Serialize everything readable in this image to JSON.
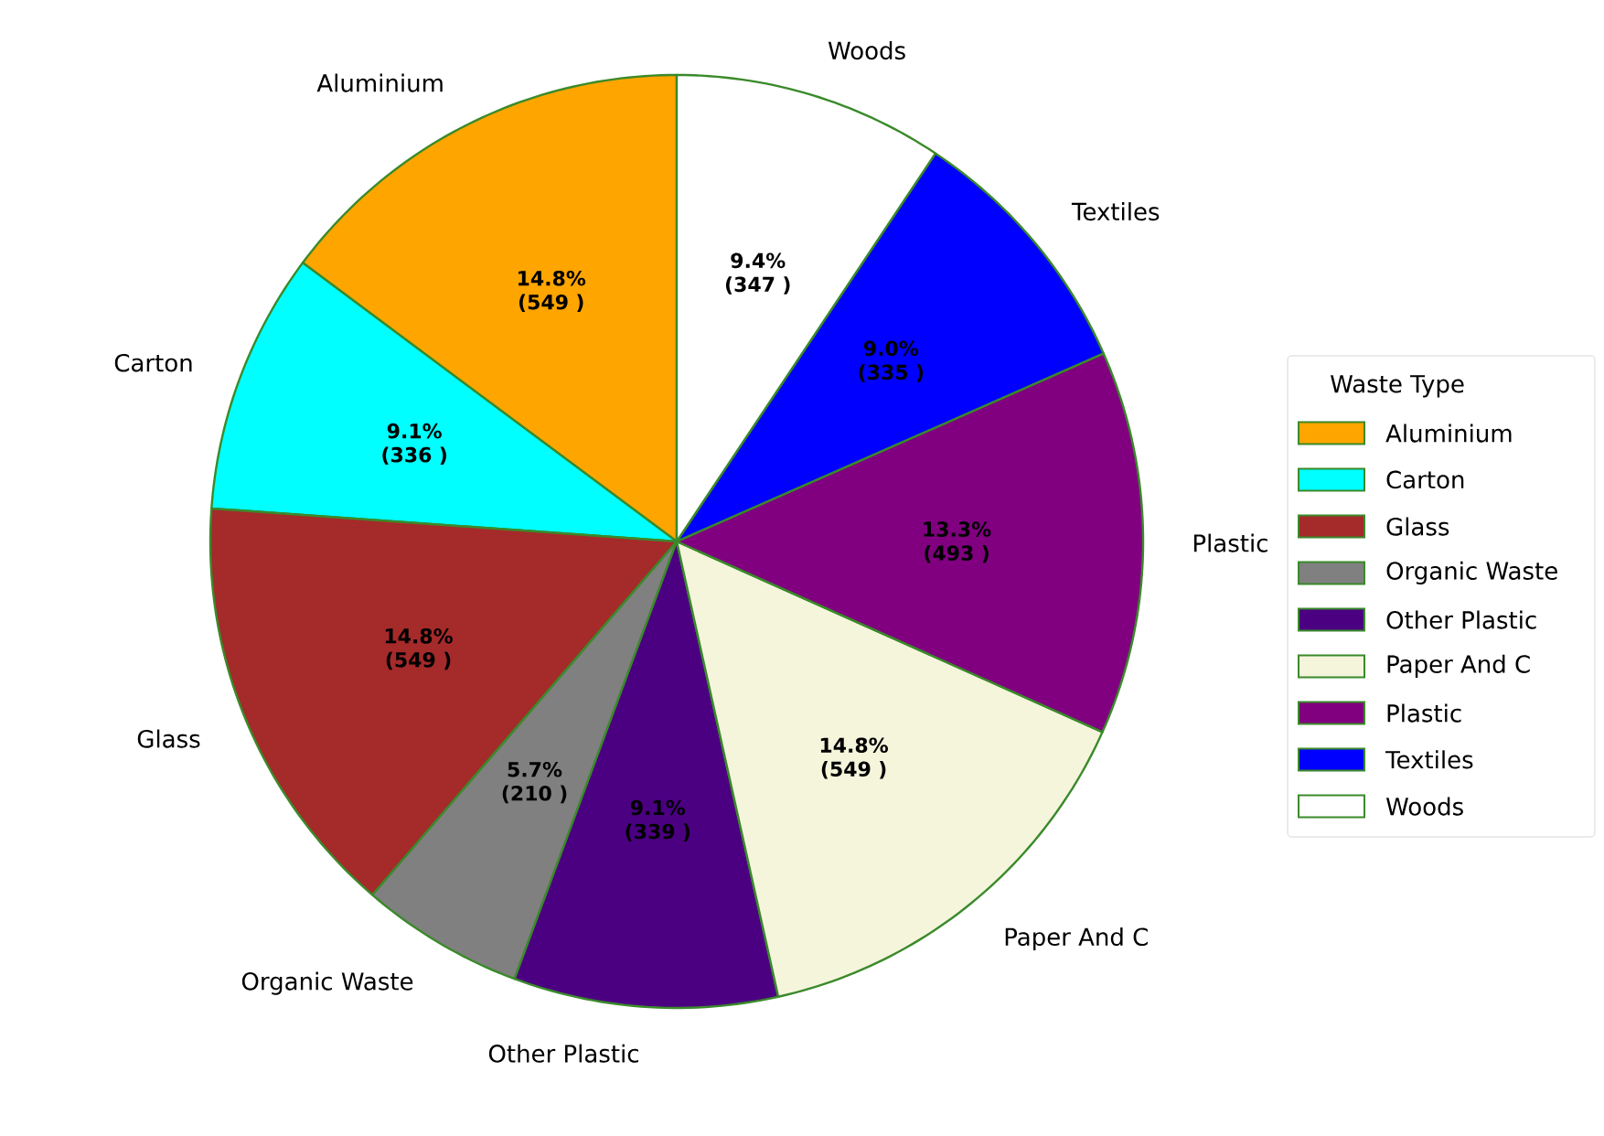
{
  "chart_data": {
    "type": "pie",
    "categories": [
      "Aluminium",
      "Carton",
      "Glass",
      "Organic Waste",
      "Other Plastic",
      "Paper And C",
      "Plastic",
      "Textiles",
      "Woods"
    ],
    "values": [
      549,
      336,
      549,
      210,
      339,
      549,
      493,
      335,
      347
    ],
    "colors": [
      "#ffa500",
      "#00ffff",
      "#a52a2a",
      "#808080",
      "#4b0082",
      "#f5f5dc",
      "#800080",
      "#0000ff",
      "#ffffff"
    ],
    "value_labels": [
      "14.8% (549 )",
      "9.1% (336 )",
      "14.8% (549 )",
      "5.7% (210 )",
      "9.1% (339 )",
      "14.8% (549 )",
      "13.3% (493 )",
      "9.0% (335 )",
      "9.4% (347 )"
    ],
    "legend": "right",
    "legend_title": "Waste Type"
  }
}
